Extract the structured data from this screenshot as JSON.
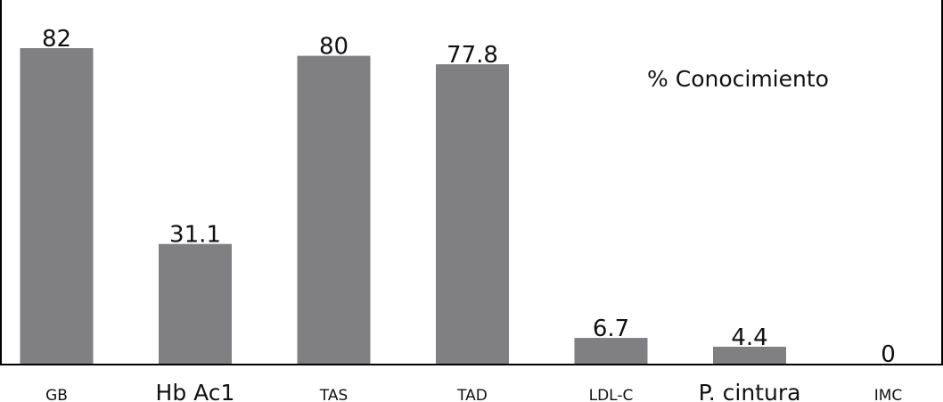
{
  "chart_data": {
    "type": "bar",
    "categories": [
      "GB",
      "Hb Ac1",
      "TAS",
      "TAD",
      "LDL-C",
      "P. cintura",
      "IMC"
    ],
    "values": [
      82,
      31.1,
      80,
      77.8,
      6.7,
      4.4,
      0
    ],
    "value_labels": [
      "82",
      "31.1",
      "80",
      "77.8",
      "6.7",
      "4.4",
      "0"
    ],
    "title": "",
    "legend_label": "% Conocimiento",
    "legend_placement": "top-right",
    "large_categories": [
      "Hb Ac1",
      "P. cintura"
    ],
    "ylim": [
      0,
      85
    ],
    "grid": false,
    "bar_color": "#808083",
    "axis_color": "#000000"
  }
}
